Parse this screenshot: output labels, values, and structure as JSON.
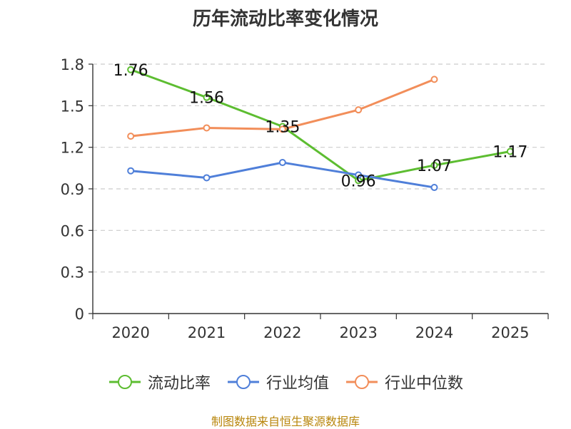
{
  "chart_data": {
    "type": "line",
    "title": "历年流动比率变化情况",
    "categories": [
      "2020",
      "2021",
      "2022",
      "2023",
      "2024",
      "2025"
    ],
    "y_ticks": [
      "0",
      "0.3",
      "0.6",
      "0.9",
      "1.2",
      "1.5",
      "1.8"
    ],
    "ylim": [
      0,
      1.8
    ],
    "grid": true,
    "legend_position": "bottom",
    "series": [
      {
        "name": "流动比率",
        "color": "#5dbd31",
        "values": [
          1.76,
          1.56,
          1.35,
          0.96,
          1.07,
          1.17
        ],
        "labels": [
          "1.76",
          "1.56",
          "1.35",
          "0.96",
          "1.07",
          "1.17"
        ]
      },
      {
        "name": "行业均值",
        "color": "#4f7fd9",
        "values": [
          1.03,
          0.98,
          1.09,
          1.0,
          0.91,
          null
        ]
      },
      {
        "name": "行业中位数",
        "color": "#f28e5a",
        "values": [
          1.28,
          1.34,
          1.33,
          1.47,
          1.69,
          null
        ]
      }
    ],
    "source": "制图数据来自恒生聚源数据库"
  }
}
